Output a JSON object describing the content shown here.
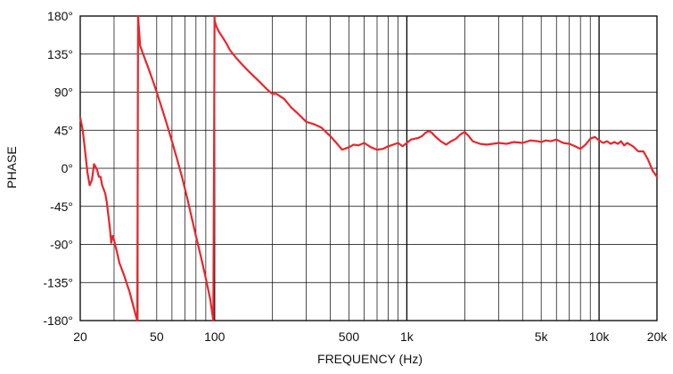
{
  "chart_data": {
    "type": "line",
    "title": "",
    "xlabel": "FREQUENCY (Hz)",
    "ylabel": "PHASE",
    "x_scale": "log",
    "xlim": [
      20,
      20000
    ],
    "ylim": [
      -180,
      180
    ],
    "grid": true,
    "legend": "none",
    "x_ticks": [
      {
        "value": 20,
        "label": "20"
      },
      {
        "value": 50,
        "label": "50"
      },
      {
        "value": 100,
        "label": "100"
      },
      {
        "value": 500,
        "label": "500"
      },
      {
        "value": 1000,
        "label": "1k"
      },
      {
        "value": 5000,
        "label": "5k"
      },
      {
        "value": 10000,
        "label": "10k"
      },
      {
        "value": 20000,
        "label": "20k"
      }
    ],
    "y_ticks": [
      {
        "value": 180,
        "label": "180°"
      },
      {
        "value": 135,
        "label": "135°"
      },
      {
        "value": 90,
        "label": "90°"
      },
      {
        "value": 45,
        "label": "45°"
      },
      {
        "value": 0,
        "label": "0°"
      },
      {
        "value": -45,
        "label": "-45°"
      },
      {
        "value": -90,
        "label": "-90°"
      },
      {
        "value": -135,
        "label": "-135°"
      },
      {
        "value": -180,
        "label": "-180°"
      }
    ],
    "colors": {
      "line": "#e8262b",
      "grid": "#000000",
      "text": "#111111"
    },
    "series": [
      {
        "segments": [
          {
            "x": [
              20,
              20.6,
              21.2,
              21.8,
              22.4,
              23.0,
              23.6,
              24.0,
              24.5,
              25.0,
              25.5,
              26.0,
              26.5,
              27.0,
              27.5,
              28.0,
              28.5,
              29.0,
              29.5,
              30.0,
              30.5,
              31.0,
              31.5,
              32.0,
              33.0,
              34.0,
              35.0,
              36.0,
              37.0,
              38.0,
              39.0,
              39.6
            ],
            "y": [
              60,
              45,
              20,
              -5,
              -20,
              -14,
              5,
              2,
              -2,
              -10,
              -10,
              -20,
              -25,
              -30,
              -40,
              -55,
              -70,
              -88,
              -80,
              -85,
              -92,
              -98,
              -105,
              -112,
              -120,
              -128,
              -137,
              -145,
              -155,
              -165,
              -175,
              -180
            ]
          },
          {
            "x": [
              39.6,
              39.8,
              40.0
            ],
            "y": [
              -180,
              0,
              180
            ]
          },
          {
            "x": [
              40.0,
              41.0,
              42.0,
              44.0,
              46.0,
              48.0,
              50.0,
              53.0,
              56.0,
              60.0,
              64.0,
              68.0,
              72.0,
              76.0,
              80.0,
              85.0,
              90.0,
              95.0,
              98.5
            ],
            "y": [
              180,
              145,
              138,
              126,
              114,
              102,
              90,
              72,
              55,
              32,
              10,
              -12,
              -35,
              -58,
              -80,
              -105,
              -130,
              -155,
              -180
            ]
          },
          {
            "x": [
              98.5,
              99.0,
              99.5,
              100.0
            ],
            "y": [
              -180,
              -60,
              60,
              180
            ]
          },
          {
            "x": [
              100,
              102,
              105,
              110,
              115,
              120,
              130,
              140,
              150,
              170,
              190,
              200,
              210,
              230,
              250,
              270,
              300,
              330,
              360,
              400,
              430,
              460,
              500,
              530,
              560,
              600,
              650,
              700,
              750,
              800,
              850,
              900,
              950,
              1000,
              1050,
              1100,
              1150,
              1200,
              1250,
              1300,
              1350,
              1400,
              1500,
              1600,
              1700,
              1800,
              1900,
              2000,
              2100,
              2200,
              2400,
              2600,
              2800,
              3000,
              3300,
              3600,
              4000,
              4400,
              4800,
              5000,
              5300,
              5600,
              6000,
              6500,
              7000,
              7500,
              8000,
              8500,
              9000,
              9500,
              10000,
              10500,
              11000,
              11500,
              12000,
              12500,
              13000,
              13500,
              14000,
              15000,
              16000,
              17000,
              18000,
              19000,
              20000
            ],
            "y": [
              175,
              168,
              162,
              155,
              148,
              140,
              130,
              122,
              115,
              103,
              92,
              88,
              88,
              82,
              72,
              65,
              55,
              52,
              48,
              38,
              30,
              22,
              25,
              28,
              27,
              30,
              25,
              22,
              23,
              26,
              28,
              30,
              26,
              30,
              34,
              35,
              36,
              38,
              42,
              44,
              42,
              38,
              32,
              28,
              32,
              35,
              40,
              43,
              38,
              32,
              29,
              28,
              29,
              30,
              29,
              31,
              30,
              33,
              32,
              31,
              33,
              32,
              34,
              30,
              29,
              26,
              23,
              28,
              35,
              37,
              33,
              30,
              32,
              29,
              31,
              29,
              32,
              27,
              30,
              26,
              20,
              20,
              10,
              -3,
              -10
            ]
          }
        ]
      }
    ]
  }
}
